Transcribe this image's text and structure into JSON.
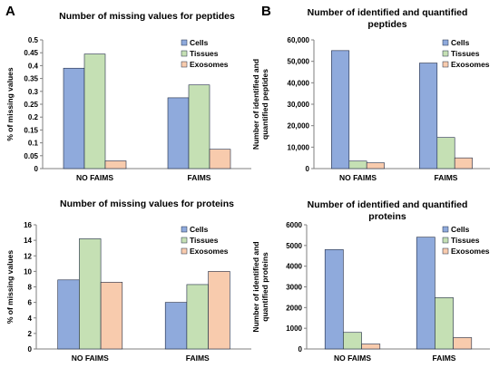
{
  "panel_labels": {
    "a": "A",
    "b": "B"
  },
  "colors": {
    "Cells": "#8faadc",
    "Tissues": "#c5e0b4",
    "Exosomes": "#f8cbad",
    "edge": "#1f2a44"
  },
  "chart_data": [
    {
      "id": "peptides_missing",
      "type": "bar",
      "title": [
        "Number of missing values for peptides"
      ],
      "ylabel": [
        "% of missing values"
      ],
      "categories": [
        "NO FAIMS",
        "FAIMS"
      ],
      "series": [
        {
          "name": "Cells",
          "values": [
            0.39,
            0.275
          ]
        },
        {
          "name": "Tissues",
          "values": [
            0.445,
            0.325
          ]
        },
        {
          "name": "Exosomes",
          "values": [
            0.03,
            0.075
          ]
        }
      ],
      "ylim": [
        0,
        0.5
      ],
      "yticks": [
        "0",
        "0.05",
        "0.1",
        "0.15",
        "0.2",
        "0.25",
        "0.3",
        "0.35",
        "0.4",
        "0.45",
        "0.5"
      ],
      "legend": "top-right"
    },
    {
      "id": "peptides_identified",
      "type": "bar",
      "title": [
        "Number of identified and quantified",
        "peptides"
      ],
      "ylabel": [
        "Number of identified and",
        "quantified peptides"
      ],
      "categories": [
        "NO FAIMS",
        "FAIMS"
      ],
      "series": [
        {
          "name": "Cells",
          "values": [
            55000,
            49200
          ]
        },
        {
          "name": "Tissues",
          "values": [
            3500,
            14500
          ]
        },
        {
          "name": "Exosomes",
          "values": [
            2700,
            5000
          ]
        }
      ],
      "ylim": [
        0,
        60000
      ],
      "yticks": [
        "0",
        "10,000",
        "20,000",
        "30,000",
        "40,000",
        "50,000",
        "60,000"
      ],
      "legend": "top-right"
    },
    {
      "id": "proteins_missing",
      "type": "bar",
      "title": [
        "Number of missing values for proteins"
      ],
      "ylabel": [
        "% of missing values"
      ],
      "categories": [
        "NO FAIMS",
        "FAIMS"
      ],
      "series": [
        {
          "name": "Cells",
          "values": [
            8.9,
            6.0
          ]
        },
        {
          "name": "Tissues",
          "values": [
            14.2,
            8.3
          ]
        },
        {
          "name": "Exosomes",
          "values": [
            8.6,
            10.0
          ]
        }
      ],
      "ylim": [
        0,
        16
      ],
      "yticks": [
        "0",
        "2",
        "4",
        "6",
        "8",
        "10",
        "12",
        "14",
        "16"
      ],
      "legend": "top-right"
    },
    {
      "id": "proteins_identified",
      "type": "bar",
      "title": [
        "Number of identified and quantified",
        "proteins"
      ],
      "ylabel": [
        "Number of identified and",
        "quantified proteins"
      ],
      "categories": [
        "NO FAIMS",
        "FAIMS"
      ],
      "series": [
        {
          "name": "Cells",
          "values": [
            4800,
            5400
          ]
        },
        {
          "name": "Tissues",
          "values": [
            800,
            2480
          ]
        },
        {
          "name": "Exosomes",
          "values": [
            240,
            550
          ]
        }
      ],
      "ylim": [
        0,
        6000
      ],
      "yticks": [
        "0",
        "1000",
        "2000",
        "3000",
        "4000",
        "5000",
        "6000"
      ],
      "legend": "top-right"
    }
  ]
}
